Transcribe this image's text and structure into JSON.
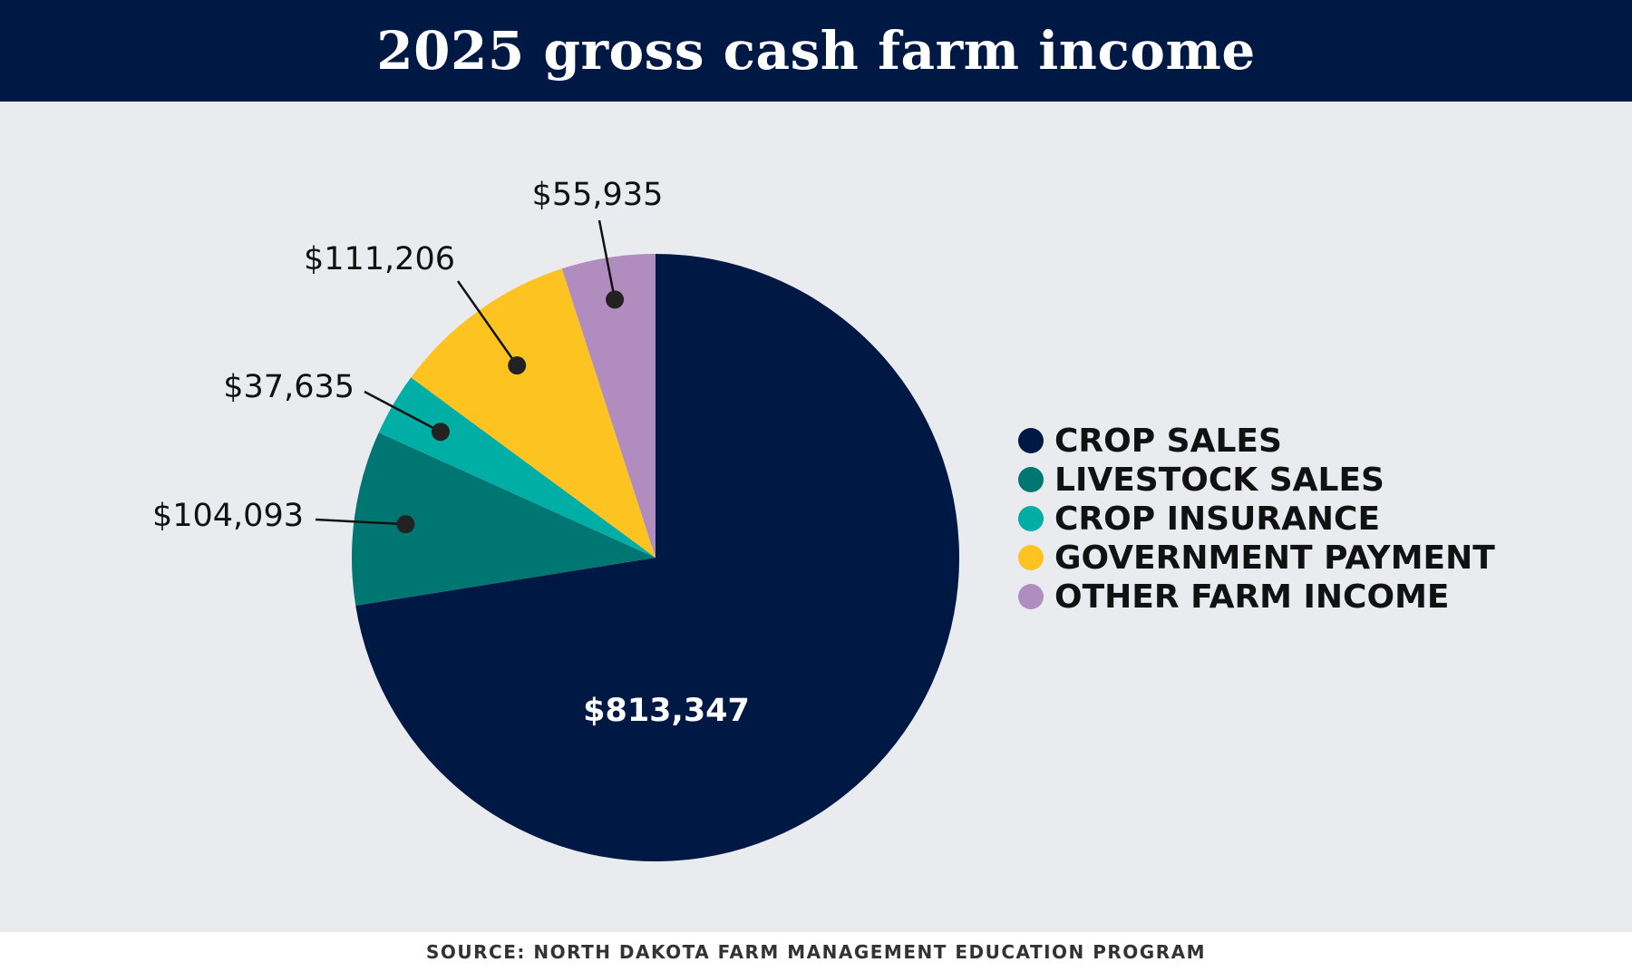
{
  "title": "2025 gross cash farm income",
  "source": "SOURCE: NORTH DAKOTA FARM MANAGEMENT EDUCATION PROGRAM",
  "chart_data": {
    "type": "pie",
    "title": "2025 gross cash farm income",
    "slices": [
      {
        "label": "CROP SALES",
        "value": 813347,
        "display": "$813,347",
        "color": "#001844"
      },
      {
        "label": "LIVESTOCK SALES",
        "value": 104093,
        "display": "$104,093",
        "color": "#007672"
      },
      {
        "label": "CROP INSURANCE",
        "value": 37635,
        "display": "$37,635",
        "color": "#00aea5"
      },
      {
        "label": "GOVERNMENT PAYMENT",
        "value": 111206,
        "display": "$111,206",
        "color": "#fdc320"
      },
      {
        "label": "OTHER FARM INCOME",
        "value": 55935,
        "display": "$55,935",
        "color": "#b18cbf"
      }
    ],
    "legend_position": "right"
  }
}
